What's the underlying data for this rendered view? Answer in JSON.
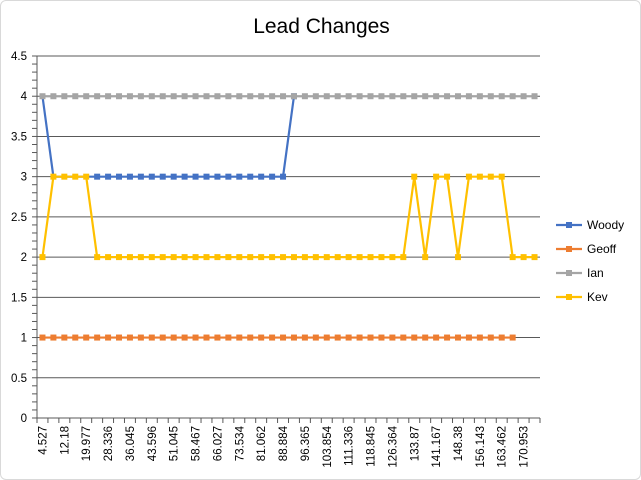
{
  "chart_data": {
    "type": "line",
    "title": "Lead Changes",
    "xlabel": "",
    "ylabel": "",
    "ylim": [
      0,
      4.5
    ],
    "y_ticks": [
      "0",
      "0.5",
      "1",
      "1.5",
      "2",
      "2.5",
      "3",
      "3.5",
      "4",
      "4.5"
    ],
    "grid": "horizontal",
    "legend_position": "right",
    "x": [
      "4.527",
      "8.354",
      "12.18",
      "16.078",
      "19.977",
      "24.157",
      "28.336",
      "32.191",
      "36.045",
      "39.821",
      "43.596",
      "47.321",
      "51.045",
      "54.756",
      "58.467",
      "62.247",
      "66.027",
      "69.781",
      "73.534",
      "77.298",
      "81.062",
      "84.973",
      "88.884",
      "92.625",
      "96.365",
      "100.110",
      "103.854",
      "107.595",
      "111.336",
      "115.091",
      "118.845",
      "122.605",
      "126.364",
      "130.117",
      "133.87",
      "137.519",
      "141.167",
      "144.774",
      "148.38",
      "152.262",
      "156.143",
      "159.803",
      "163.462",
      "167.208",
      "170.953",
      "174.701"
    ],
    "x_tick_labels": [
      "4.527",
      "12.18",
      "19.977",
      "28.336",
      "36.045",
      "43.596",
      "51.045",
      "58.467",
      "66.027",
      "73.534",
      "81.062",
      "88.884",
      "96.365",
      "103.854",
      "111.336",
      "118.845",
      "126.364",
      "133.87",
      "141.167",
      "148.38",
      "156.143",
      "163.462",
      "170.953"
    ],
    "series": [
      {
        "name": "Woody",
        "color": "#4472c4",
        "marker_from_index": 5,
        "values": [
          4,
          3,
          3,
          3,
          3,
          3,
          3,
          3,
          3,
          3,
          3,
          3,
          3,
          3,
          3,
          3,
          3,
          3,
          3,
          3,
          3,
          3,
          3,
          4,
          null,
          null,
          null,
          null,
          null,
          null,
          null,
          null,
          null,
          null,
          null,
          null,
          null,
          null,
          null,
          null,
          null,
          null,
          null,
          null,
          null,
          null
        ]
      },
      {
        "name": "Geoff",
        "color": "#ed7d31",
        "values": [
          1,
          1,
          1,
          1,
          1,
          1,
          1,
          1,
          1,
          1,
          1,
          1,
          1,
          1,
          1,
          1,
          1,
          1,
          1,
          1,
          1,
          1,
          1,
          1,
          1,
          1,
          1,
          1,
          1,
          1,
          1,
          1,
          1,
          1,
          1,
          1,
          1,
          1,
          1,
          1,
          1,
          1,
          1,
          1,
          null,
          null
        ]
      },
      {
        "name": "Ian",
        "color": "#a5a5a5",
        "values": [
          4,
          4,
          4,
          4,
          4,
          4,
          4,
          4,
          4,
          4,
          4,
          4,
          4,
          4,
          4,
          4,
          4,
          4,
          4,
          4,
          4,
          4,
          4,
          4,
          4,
          4,
          4,
          4,
          4,
          4,
          4,
          4,
          4,
          4,
          4,
          4,
          4,
          4,
          4,
          4,
          4,
          4,
          4,
          4,
          4,
          4
        ]
      },
      {
        "name": "Kev",
        "color": "#ffc000",
        "values": [
          2,
          3,
          3,
          3,
          3,
          2,
          2,
          2,
          2,
          2,
          2,
          2,
          2,
          2,
          2,
          2,
          2,
          2,
          2,
          2,
          2,
          2,
          2,
          2,
          2,
          2,
          2,
          2,
          2,
          2,
          2,
          2,
          2,
          2,
          3,
          2,
          3,
          3,
          2,
          3,
          3,
          3,
          3,
          2,
          2,
          2
        ]
      }
    ]
  }
}
